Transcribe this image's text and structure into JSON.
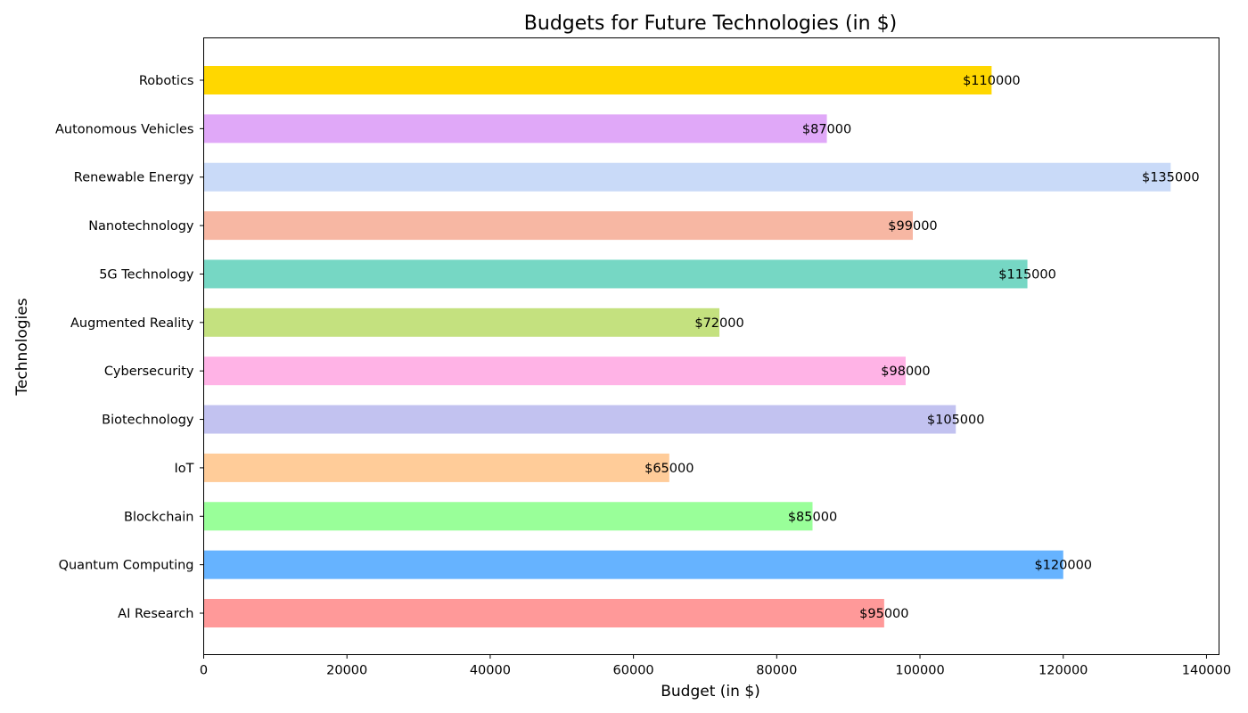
{
  "chart_data": {
    "type": "bar",
    "orientation": "horizontal",
    "title": "Budgets for Future Technologies (in $)",
    "xlabel": "Budget (in $)",
    "ylabel": "Technologies",
    "xlim": [
      0,
      141750
    ],
    "xticks": [
      0,
      20000,
      40000,
      60000,
      80000,
      100000,
      120000,
      140000
    ],
    "xtick_labels": [
      "0",
      "20000",
      "40000",
      "60000",
      "80000",
      "100000",
      "120000",
      "140000"
    ],
    "grid": false,
    "legend": "none",
    "categories": [
      "AI Research",
      "Quantum Computing",
      "Blockchain",
      "IoT",
      "Biotechnology",
      "Cybersecurity",
      "Augmented Reality",
      "5G Technology",
      "Nanotechnology",
      "Renewable Energy",
      "Autonomous Vehicles",
      "Robotics"
    ],
    "values": [
      95000,
      120000,
      85000,
      65000,
      105000,
      98000,
      72000,
      115000,
      99000,
      135000,
      87000,
      110000
    ],
    "data_labels": [
      "$95000",
      "$120000",
      "$85000",
      "$65000",
      "$105000",
      "$98000",
      "$72000",
      "$115000",
      "$99000",
      "$135000",
      "$87000",
      "$110000"
    ],
    "colors": [
      "#ff9999",
      "#66b3ff",
      "#99ff99",
      "#ffcc99",
      "#c2c2f0",
      "#ffb3e6",
      "#c4e17f",
      "#76d7c4",
      "#f7b7a3",
      "#c9daf8",
      "#e0a8f8",
      "#ffd700"
    ]
  }
}
